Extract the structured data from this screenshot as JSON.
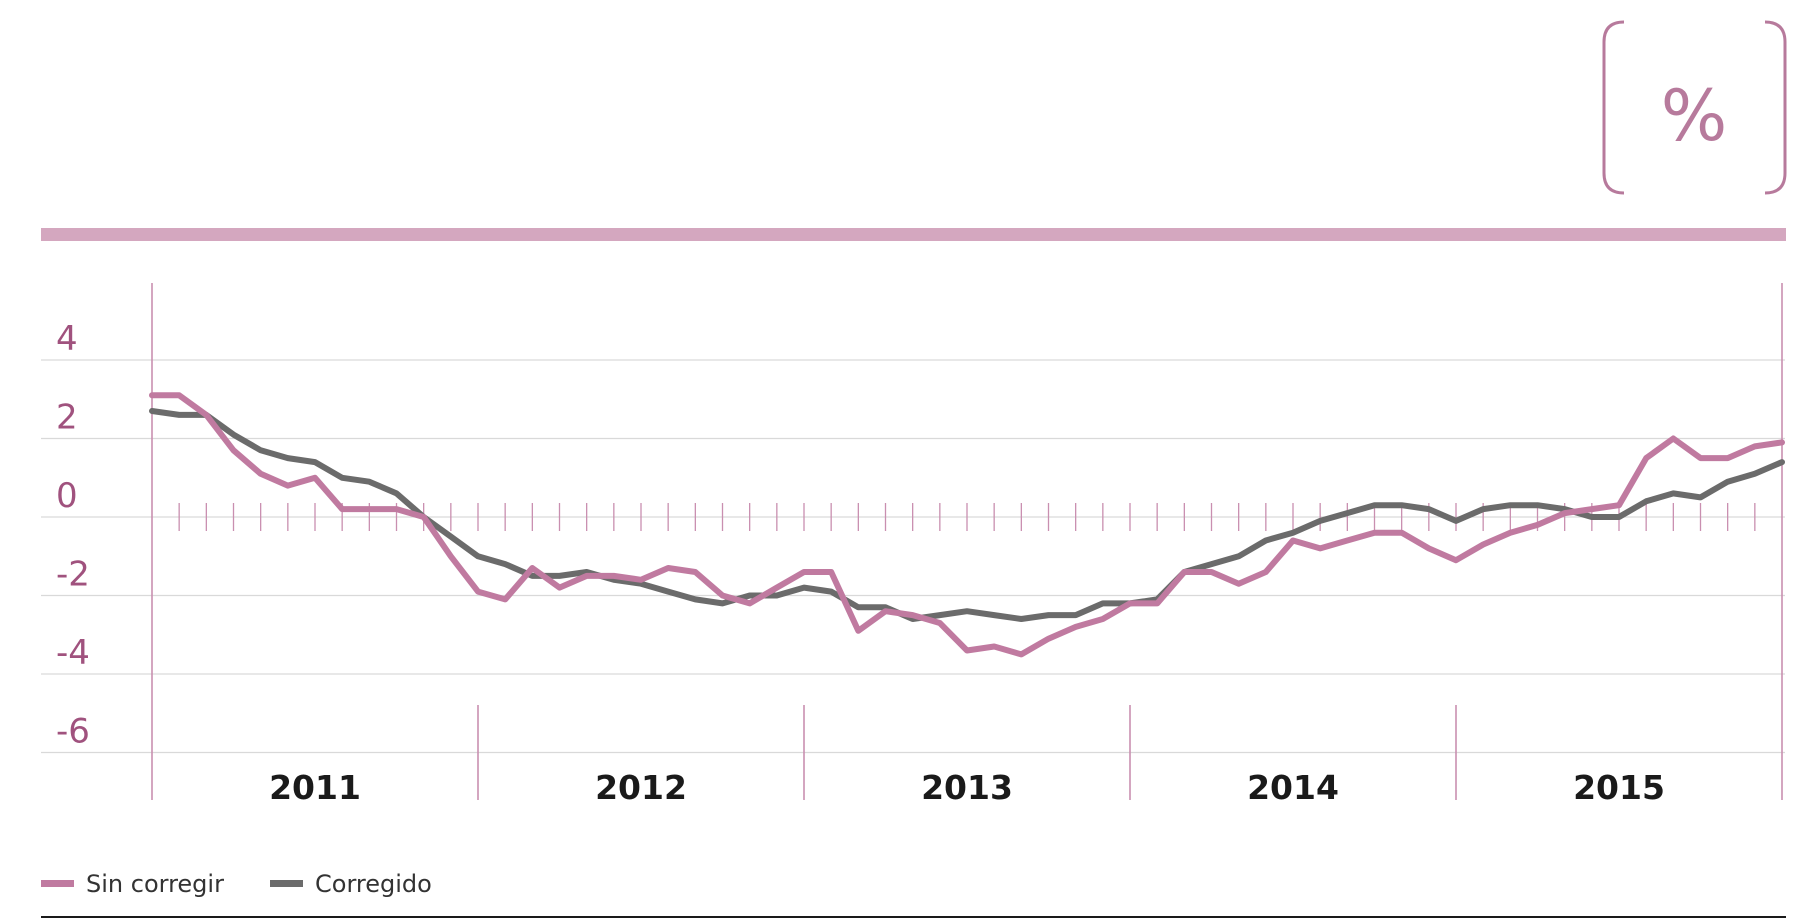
{
  "colors": {
    "accent": "#d4a7bf",
    "sin_corregir": "#c07aa0",
    "corregido": "#6b6b6b",
    "tick_label": "#a0527e",
    "grid": "#d9d9d9",
    "year_divider": "#c98fb0"
  },
  "unit_box": {
    "label": "%"
  },
  "chart_data": {
    "type": "line",
    "ylim": [
      -6,
      5
    ],
    "yticks": [
      4,
      2,
      0,
      -2,
      -4,
      -6
    ],
    "ytick_labels": [
      "4",
      "2",
      "0",
      "-2",
      "-4",
      "-6"
    ],
    "x_start": "2011-01",
    "x_end": "2015-12",
    "grid": true,
    "legend_position": "bottom-left",
    "years": [
      "2011",
      "2012",
      "2013",
      "2014",
      "2015"
    ],
    "series": [
      {
        "name": "Sin corregir",
        "color": "#c07aa0",
        "values": [
          3.1,
          3.1,
          2.6,
          1.7,
          1.1,
          0.8,
          1.0,
          0.2,
          0.2,
          0.2,
          0.0,
          -1.0,
          -1.9,
          -2.1,
          -1.3,
          -1.8,
          -1.5,
          -1.5,
          -1.6,
          -1.3,
          -1.4,
          -2.0,
          -2.2,
          -1.8,
          -1.4,
          -1.4,
          -2.9,
          -2.4,
          -2.5,
          -2.7,
          -3.4,
          -3.3,
          -3.5,
          -3.1,
          -2.8,
          -2.6,
          -2.2,
          -2.2,
          -1.4,
          -1.4,
          -1.7,
          -1.4,
          -0.6,
          -0.8,
          -0.6,
          -0.4,
          -0.4,
          -0.8,
          -1.1,
          -0.7,
          -0.4,
          -0.2,
          0.1,
          0.2,
          0.3,
          1.5,
          2.0,
          1.5,
          1.5,
          1.8,
          1.9
        ]
      },
      {
        "name": "Corregido",
        "color": "#6b6b6b",
        "values": [
          2.7,
          2.6,
          2.6,
          2.1,
          1.7,
          1.5,
          1.4,
          1.0,
          0.9,
          0.6,
          0.0,
          -0.5,
          -1.0,
          -1.2,
          -1.5,
          -1.5,
          -1.4,
          -1.6,
          -1.7,
          -1.9,
          -2.1,
          -2.2,
          -2.0,
          -2.0,
          -1.8,
          -1.9,
          -2.3,
          -2.3,
          -2.6,
          -2.5,
          -2.4,
          -2.5,
          -2.6,
          -2.5,
          -2.5,
          -2.2,
          -2.2,
          -2.1,
          -1.4,
          -1.2,
          -1.0,
          -0.6,
          -0.4,
          -0.1,
          0.1,
          0.3,
          0.3,
          0.2,
          -0.1,
          0.2,
          0.3,
          0.3,
          0.2,
          0.0,
          0.0,
          0.4,
          0.6,
          0.5,
          0.9,
          1.1,
          1.4
        ]
      }
    ]
  }
}
